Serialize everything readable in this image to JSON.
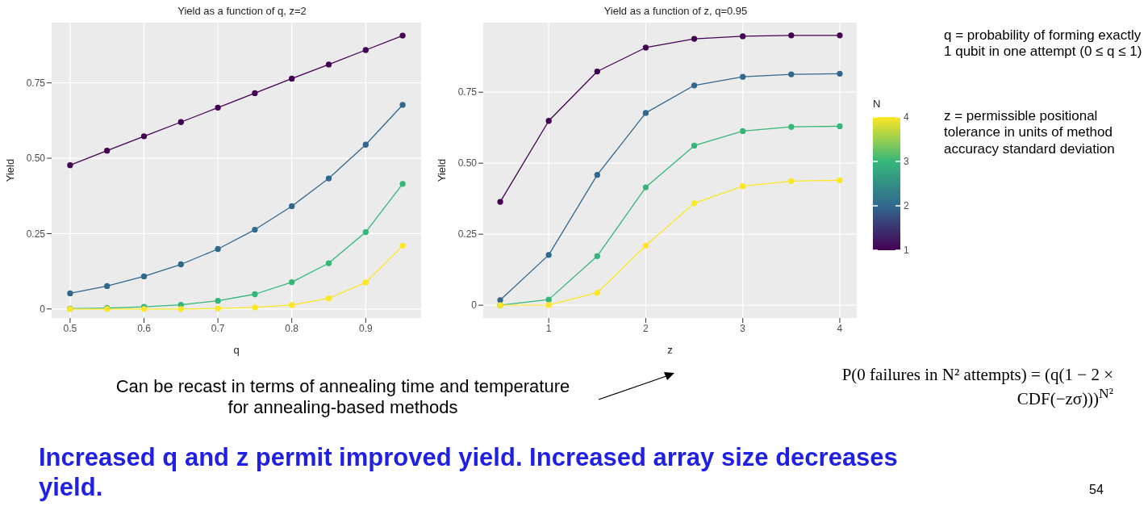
{
  "chart_data": [
    {
      "type": "line",
      "title": "Yield as a function of q, z=2",
      "xlabel": "q",
      "ylabel": "Yield",
      "x": [
        0.5,
        0.55,
        0.6,
        0.65,
        0.7,
        0.75,
        0.8,
        0.85,
        0.9,
        0.95
      ],
      "xlim": [
        0.475,
        0.975
      ],
      "xticks": [
        0.5,
        0.6,
        0.7,
        0.8,
        0.9
      ],
      "ylim": [
        -0.03,
        0.95
      ],
      "yticks": [
        0,
        0.25,
        {
          "value": 0.5,
          "label": "0.50"
        },
        0.75
      ],
      "grid": true,
      "marker": "circle",
      "series": [
        {
          "color": "#440154",
          "values": [
            0.477,
            0.525,
            0.573,
            0.62,
            0.668,
            0.716,
            0.764,
            0.811,
            0.859,
            0.907
          ]
        },
        {
          "color": "#31688e",
          "values": [
            0.052,
            0.076,
            0.108,
            0.148,
            0.199,
            0.263,
            0.341,
            0.433,
            0.545,
            0.677
          ]
        },
        {
          "color": "#35b779",
          "values": [
            0.001,
            0.003,
            0.007,
            0.014,
            0.027,
            0.049,
            0.089,
            0.152,
            0.255,
            0.415
          ]
        },
        {
          "color": "#fde725",
          "values": [
            0,
            0,
            0,
            0,
            0.002,
            0.005,
            0.013,
            0.035,
            0.088,
            0.21
          ]
        }
      ]
    },
    {
      "type": "line",
      "title": "Yield as a function of z, q=0.95",
      "xlabel": "z",
      "ylabel": "Yield",
      "x": [
        0.5,
        1,
        1.5,
        2,
        2.5,
        3,
        3.5,
        4
      ],
      "xlim": [
        0.325,
        4.175
      ],
      "xticks": [
        1,
        2,
        3,
        4
      ],
      "ylim": [
        -0.045,
        0.995
      ],
      "yticks": [
        0,
        0.25,
        {
          "value": 0.5,
          "label": "0.50"
        },
        0.75
      ],
      "grid": true,
      "marker": "circle",
      "clabel": "N",
      "clim": [
        1,
        4
      ],
      "cticks": [
        1,
        2,
        3,
        4
      ],
      "series": [
        {
          "color": "#440154",
          "values": [
            0.364,
            0.649,
            0.823,
            0.907,
            0.938,
            0.947,
            0.95,
            0.95
          ]
        },
        {
          "color": "#31688e",
          "values": [
            0.018,
            0.177,
            0.459,
            0.677,
            0.774,
            0.804,
            0.813,
            0.815
          ]
        },
        {
          "color": "#35b779",
          "values": [
            0,
            0.02,
            0.173,
            0.415,
            0.562,
            0.613,
            0.628,
            0.63
          ]
        },
        {
          "color": "#fde725",
          "values": [
            0,
            0.001,
            0.044,
            0.21,
            0.359,
            0.419,
            0.437,
            0.44
          ]
        }
      ],
      "annotations": [
        "q = probability of forming exactly 1 qubit in one attempt (0 ≤ q ≤ 1)",
        "z = permissible positional tolerance in units of method accuracy standard deviation",
        "P(0 failures in N² attempts) = (q(1 − 2 × CDF(−zσ)))$^{N²}$",
        "Can be recast in terms of annealing time and temperature for annealing-based methods",
        "Increased q and z permit improved yield. Increased array size decreases yield.",
        "54"
      ]
    }
  ]
}
